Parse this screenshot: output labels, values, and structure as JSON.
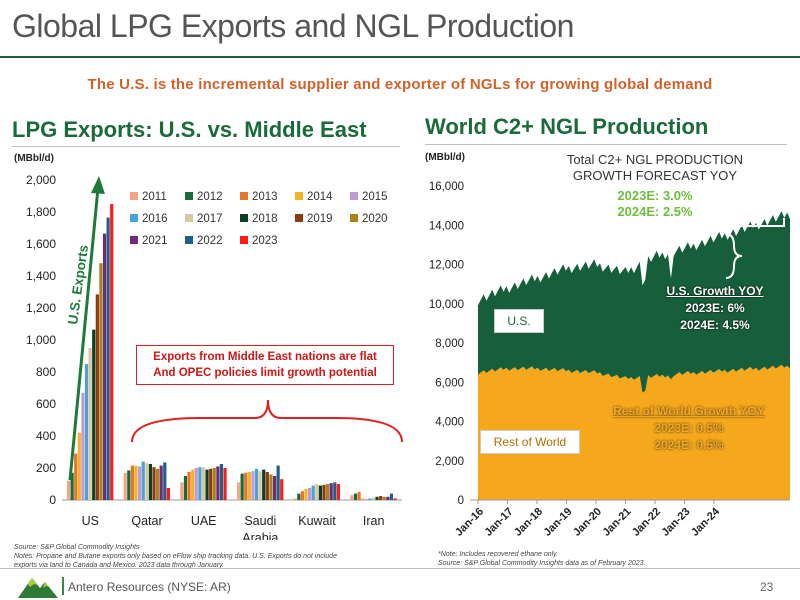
{
  "slide": {
    "title": "Global LPG Exports and NGL Production",
    "subtitle": "The U.S. is the incremental supplier and exporter of NGLs for growing global demand",
    "page_number": "23",
    "footer_company": "Antero Resources (NYSE: AR)",
    "logo_icon": "mountain-logo-icon"
  },
  "left_panel": {
    "title": "LPG Exports: U.S. vs. Middle East",
    "unit": "(MBbl/d)",
    "arrow_label": "U.S. Exports",
    "callout_line1": "Exports from Middle East nations are flat",
    "callout_line2": "And OPEC policies limit growth potential",
    "source": "Source: S&P Global Commodity Insights",
    "notes_line1": "Notes: Propane and Butane exports only based on eFlow ship tracking data.  U.S. Exports do not include",
    "notes_line2": "exports via land to Canada and Mexico. 2023 data through January."
  },
  "right_panel": {
    "title": "World C2+ NGL Production",
    "unit": "(MBbl/d)",
    "forecast_title_line1": "Total C2+ NGL PRODUCTION",
    "forecast_title_line2": "GROWTH FORECAST YOY",
    "forecast_2023": "2023E: 3.0%",
    "forecast_2024": "2024E: 2.5%",
    "us_growth_title": "U.S. Growth YOY",
    "us_growth_2023": "2023E: 6%",
    "us_growth_2024": "2024E: 4.5%",
    "row_growth_title": "Rest of World Growth YOY",
    "row_growth_2023": "2023E: 0.5%",
    "row_growth_2024": "2024E: 0.5%",
    "us_label": "U.S.",
    "row_label": "Rest of World",
    "note1": "*Note: Includes recovered ethane only.",
    "note2": "Source: S&P Global Commodity Insights data as of February 2023."
  },
  "chart_data": [
    {
      "type": "bar",
      "title": "LPG Exports: U.S. vs. Middle East",
      "ylabel": "(MBbl/d)",
      "ylim": [
        0,
        2000
      ],
      "yticks": [
        "0",
        "200",
        "400",
        "600",
        "800",
        "1,000",
        "1,200",
        "1,400",
        "1,600",
        "1,800",
        "2,000"
      ],
      "grid": false,
      "legend_position": "top-right",
      "categories": [
        "US",
        "Qatar",
        "UAE",
        "Saudi Arabia",
        "Kuwait",
        "Iran"
      ],
      "series": [
        {
          "name": "2011",
          "color": "#f4a582",
          "values": [
            120,
            170,
            110,
            110,
            10,
            30
          ]
        },
        {
          "name": "2012",
          "color": "#1a6a3a",
          "values": [
            170,
            185,
            150,
            165,
            40,
            40
          ]
        },
        {
          "name": "2013",
          "color": "#e8732a",
          "values": [
            290,
            215,
            175,
            170,
            55,
            50
          ]
        },
        {
          "name": "2014",
          "color": "#f5b324",
          "values": [
            420,
            215,
            190,
            175,
            70,
            10
          ]
        },
        {
          "name": "2015",
          "color": "#c19ad4",
          "values": [
            670,
            210,
            200,
            180,
            75,
            5
          ]
        },
        {
          "name": "2016",
          "color": "#4aa3d8",
          "values": [
            850,
            240,
            205,
            195,
            90,
            10
          ]
        },
        {
          "name": "2017",
          "color": "#d8c7a0",
          "values": [
            950,
            230,
            205,
            180,
            100,
            15
          ]
        },
        {
          "name": "2018",
          "color": "#0f3d22",
          "values": [
            1065,
            225,
            190,
            190,
            90,
            20
          ]
        },
        {
          "name": "2019",
          "color": "#8b3a14",
          "values": [
            1285,
            205,
            195,
            175,
            95,
            25
          ]
        },
        {
          "name": "2020",
          "color": "#a88418",
          "values": [
            1480,
            195,
            200,
            160,
            100,
            20
          ]
        },
        {
          "name": "2021",
          "color": "#6b2d7a",
          "values": [
            1665,
            215,
            210,
            150,
            105,
            20
          ]
        },
        {
          "name": "2022",
          "color": "#1f5f88",
          "values": [
            1765,
            235,
            225,
            215,
            110,
            40
          ]
        },
        {
          "name": "2023",
          "color": "#ff1a1a",
          "values": [
            1850,
            75,
            200,
            130,
            100,
            10
          ]
        }
      ]
    },
    {
      "type": "area",
      "title": "World C2+ NGL Production",
      "ylabel": "(MBbl/d)",
      "ylim": [
        0,
        16000
      ],
      "yticks": [
        "0",
        "2,000",
        "4,000",
        "6,000",
        "8,000",
        "10,000",
        "12,000",
        "14,000",
        "16,000"
      ],
      "x": [
        "Jan-16",
        "Jan-17",
        "Jan-18",
        "Jan-19",
        "Jan-20",
        "Jan-21",
        "Jan-22",
        "Jan-23",
        "Jan-24"
      ],
      "grid": false,
      "series": [
        {
          "name": "Rest of World",
          "color": "#f5a81c",
          "values": [
            6500,
            6700,
            6700,
            6600,
            6500,
            6200,
            6300,
            6450,
            6550
          ]
        },
        {
          "name": "U.S.",
          "color": "#175f3b",
          "values": [
            10200,
            10800,
            11300,
            11800,
            12000,
            11600,
            12400,
            12800,
            13300
          ]
        }
      ]
    }
  ]
}
